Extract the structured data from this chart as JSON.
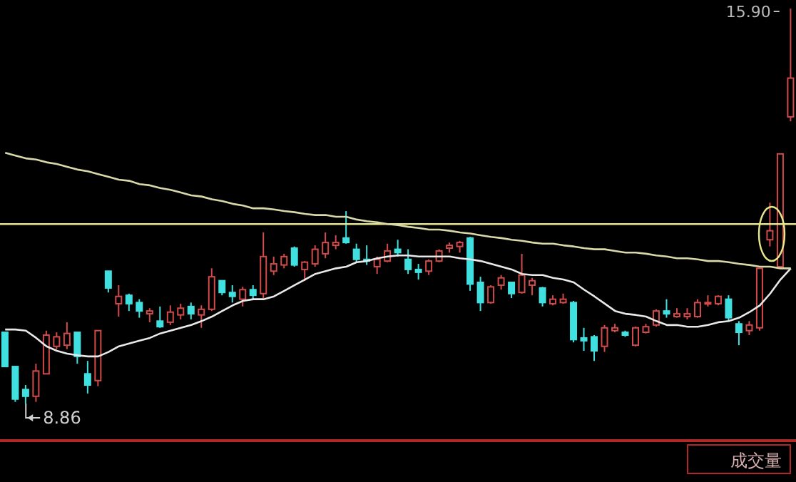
{
  "chart_data": {
    "type": "candlestick",
    "categories": [
      null,
      null,
      null,
      null,
      null,
      null,
      null,
      null,
      null,
      null,
      null,
      null,
      null,
      null,
      null,
      null,
      null,
      null,
      null,
      null,
      null,
      null,
      null,
      null,
      null,
      null,
      null,
      null,
      null,
      null,
      null,
      null,
      null,
      null,
      null,
      null,
      null,
      null,
      null,
      null,
      null,
      null,
      null,
      null,
      null,
      null,
      null,
      null,
      null,
      null,
      null,
      null,
      null,
      null,
      null,
      null,
      null,
      null,
      null,
      null,
      null,
      null,
      null,
      null,
      null,
      null,
      null,
      null,
      null,
      null,
      null,
      null,
      null,
      null,
      null,
      null,
      null
    ],
    "ohlc": [
      [
        10.13,
        10.13,
        9.52,
        9.52
      ],
      [
        9.52,
        9.52,
        8.89,
        8.94
      ],
      [
        9.11,
        9.19,
        8.86,
        8.99
      ],
      [
        8.99,
        9.57,
        8.89,
        9.44
      ],
      [
        9.39,
        10.16,
        9.39,
        10.08
      ],
      [
        9.88,
        10.13,
        9.83,
        10.05
      ],
      [
        9.9,
        10.31,
        9.83,
        10.11
      ],
      [
        10.13,
        10.13,
        9.57,
        9.7
      ],
      [
        9.39,
        9.62,
        9.04,
        9.19
      ],
      [
        9.27,
        10.16,
        9.17,
        10.16
      ],
      [
        11.22,
        11.22,
        10.84,
        10.92
      ],
      [
        10.64,
        10.97,
        10.41,
        10.77
      ],
      [
        10.79,
        10.82,
        10.51,
        10.64
      ],
      [
        10.66,
        10.72,
        10.39,
        10.51
      ],
      [
        10.46,
        10.56,
        10.31,
        10.51
      ],
      [
        10.33,
        10.59,
        10.21,
        10.23
      ],
      [
        10.31,
        10.61,
        10.26,
        10.49
      ],
      [
        10.44,
        10.64,
        10.36,
        10.56
      ],
      [
        10.59,
        10.66,
        10.36,
        10.46
      ],
      [
        10.44,
        10.61,
        10.21,
        10.54
      ],
      [
        10.54,
        11.27,
        10.51,
        11.12
      ],
      [
        11.05,
        11.05,
        10.79,
        10.84
      ],
      [
        10.84,
        10.97,
        10.66,
        10.77
      ],
      [
        10.72,
        10.94,
        10.59,
        10.89
      ],
      [
        10.89,
        10.97,
        10.72,
        10.79
      ],
      [
        10.82,
        11.91,
        10.74,
        11.48
      ],
      [
        11.22,
        11.48,
        11.15,
        11.35
      ],
      [
        11.33,
        11.53,
        11.27,
        11.48
      ],
      [
        11.63,
        11.66,
        11.3,
        11.33
      ],
      [
        11.25,
        11.4,
        11.05,
        11.38
      ],
      [
        11.35,
        11.68,
        11.3,
        11.61
      ],
      [
        11.53,
        11.91,
        11.45,
        11.73
      ],
      [
        11.68,
        11.86,
        11.61,
        11.73
      ],
      [
        11.81,
        12.29,
        11.71,
        11.73
      ],
      [
        11.61,
        11.71,
        11.38,
        11.43
      ],
      [
        11.43,
        11.68,
        11.33,
        11.4
      ],
      [
        11.3,
        11.48,
        11.17,
        11.43
      ],
      [
        11.4,
        11.71,
        11.38,
        11.58
      ],
      [
        11.61,
        11.78,
        11.48,
        11.55
      ],
      [
        11.43,
        11.61,
        11.17,
        11.25
      ],
      [
        11.25,
        11.35,
        11.07,
        11.2
      ],
      [
        11.22,
        11.43,
        11.15,
        11.4
      ],
      [
        11.4,
        11.61,
        11.38,
        11.58
      ],
      [
        11.63,
        11.73,
        11.55,
        11.68
      ],
      [
        11.66,
        11.76,
        11.55,
        11.73
      ],
      [
        11.81,
        11.83,
        10.87,
        10.99
      ],
      [
        11.02,
        11.12,
        10.51,
        10.66
      ],
      [
        10.66,
        10.97,
        10.64,
        10.94
      ],
      [
        10.97,
        11.15,
        10.89,
        11.1
      ],
      [
        11.02,
        11.02,
        10.74,
        10.82
      ],
      [
        10.84,
        11.53,
        10.82,
        11.15
      ],
      [
        10.97,
        11.1,
        10.79,
        11.05
      ],
      [
        10.92,
        10.94,
        10.59,
        10.66
      ],
      [
        10.64,
        10.79,
        10.61,
        10.72
      ],
      [
        10.66,
        10.82,
        10.64,
        10.72
      ],
      [
        10.66,
        10.69,
        9.95,
        10.0
      ],
      [
        10.03,
        10.21,
        9.8,
        9.98
      ],
      [
        10.05,
        10.08,
        9.62,
        9.8
      ],
      [
        9.88,
        10.26,
        9.78,
        10.21
      ],
      [
        10.16,
        10.28,
        10.13,
        10.21
      ],
      [
        10.13,
        10.16,
        10.05,
        10.08
      ],
      [
        9.9,
        10.23,
        9.88,
        10.21
      ],
      [
        10.13,
        10.28,
        10.11,
        10.23
      ],
      [
        10.26,
        10.54,
        10.23,
        10.51
      ],
      [
        10.51,
        10.72,
        10.39,
        10.46
      ],
      [
        10.41,
        10.56,
        10.39,
        10.46
      ],
      [
        10.41,
        10.56,
        10.36,
        10.46
      ],
      [
        10.41,
        10.72,
        10.39,
        10.66
      ],
      [
        10.64,
        10.79,
        10.59,
        10.66
      ],
      [
        10.64,
        10.79,
        10.61,
        10.77
      ],
      [
        10.72,
        10.79,
        10.33,
        10.39
      ],
      [
        10.28,
        10.33,
        9.9,
        10.13
      ],
      [
        10.16,
        10.33,
        10.08,
        10.26
      ],
      [
        10.21,
        11.27,
        10.16,
        11.27
      ],
      [
        11.78,
        12.44,
        11.66,
        11.94
      ],
      [
        11.3,
        13.31,
        11.3,
        13.31
      ],
      [
        13.97,
        15.9,
        13.89,
        14.66
      ]
    ],
    "colors": [
      "#40e0e0",
      "#40e0e0",
      "#40e0e0",
      "#d24a4a",
      "#d24a4a",
      "#d24a4a",
      "#d24a4a",
      "#40e0e0",
      "#40e0e0",
      "#d24a4a",
      "#40e0e0",
      "#d24a4a",
      "#40e0e0",
      "#40e0e0",
      "#d24a4a",
      "#40e0e0",
      "#d24a4a",
      "#d24a4a",
      "#40e0e0",
      "#d24a4a",
      "#d24a4a",
      "#40e0e0",
      "#40e0e0",
      "#d24a4a",
      "#40e0e0",
      "#d24a4a",
      "#d24a4a",
      "#d24a4a",
      "#40e0e0",
      "#d24a4a",
      "#d24a4a",
      "#d24a4a",
      "#d24a4a",
      "#40e0e0",
      "#40e0e0",
      "#40e0e0",
      "#d24a4a",
      "#d24a4a",
      "#40e0e0",
      "#40e0e0",
      "#40e0e0",
      "#d24a4a",
      "#d24a4a",
      "#d24a4a",
      "#d24a4a",
      "#40e0e0",
      "#40e0e0",
      "#d24a4a",
      "#d24a4a",
      "#40e0e0",
      "#d24a4a",
      "#d24a4a",
      "#40e0e0",
      "#d24a4a",
      "#d24a4a",
      "#40e0e0",
      "#40e0e0",
      "#40e0e0",
      "#d24a4a",
      "#d24a4a",
      "#40e0e0",
      "#d24a4a",
      "#d24a4a",
      "#d24a4a",
      "#40e0e0",
      "#d24a4a",
      "#d24a4a",
      "#d24a4a",
      "#d24a4a",
      "#d24a4a",
      "#40e0e0",
      "#40e0e0",
      "#d24a4a",
      "#d24a4a",
      "#d24a4a",
      "#d24a4a",
      "#d24a4a"
    ],
    "series": [
      {
        "type": "line",
        "color": "#e8e8e8",
        "values": [
          10.18,
          10.18,
          10.16,
          10.03,
          9.88,
          9.8,
          9.75,
          9.72,
          9.7,
          9.7,
          9.78,
          9.88,
          9.93,
          9.98,
          10.03,
          10.11,
          10.16,
          10.21,
          10.26,
          10.33,
          10.41,
          10.51,
          10.61,
          10.69,
          10.72,
          10.72,
          10.77,
          10.87,
          10.97,
          11.07,
          11.17,
          11.22,
          11.27,
          11.3,
          11.38,
          11.4,
          11.45,
          11.48,
          11.5,
          11.5,
          11.48,
          11.48,
          11.48,
          11.48,
          11.45,
          11.43,
          11.4,
          11.35,
          11.3,
          11.25,
          11.17,
          11.15,
          11.15,
          11.1,
          11.07,
          11.02,
          10.89,
          10.77,
          10.64,
          10.51,
          10.46,
          10.44,
          10.41,
          10.33,
          10.26,
          10.26,
          10.23,
          10.23,
          10.26,
          10.31,
          10.33,
          10.39,
          10.49,
          10.61,
          10.82,
          11.07,
          11.27
        ]
      },
      {
        "type": "line",
        "color": "#d8d8a8",
        "values": [
          13.33,
          13.28,
          13.23,
          13.21,
          13.16,
          13.13,
          13.08,
          13.03,
          13.0,
          12.95,
          12.9,
          12.85,
          12.83,
          12.77,
          12.75,
          12.7,
          12.67,
          12.62,
          12.57,
          12.55,
          12.5,
          12.47,
          12.42,
          12.39,
          12.34,
          12.34,
          12.32,
          12.29,
          12.27,
          12.24,
          12.22,
          12.22,
          12.19,
          12.19,
          12.14,
          12.11,
          12.09,
          12.06,
          12.04,
          12.01,
          11.99,
          11.96,
          11.96,
          11.94,
          11.91,
          11.89,
          11.86,
          11.83,
          11.81,
          11.78,
          11.76,
          11.73,
          11.71,
          11.71,
          11.68,
          11.66,
          11.63,
          11.61,
          11.61,
          11.58,
          11.55,
          11.55,
          11.53,
          11.5,
          11.48,
          11.45,
          11.45,
          11.43,
          11.4,
          11.4,
          11.38,
          11.35,
          11.33,
          11.3,
          11.3,
          11.27,
          11.27
        ]
      }
    ],
    "ref_lines": [
      {
        "axis": "y",
        "value": 12.06,
        "color": "#e6e68a"
      }
    ],
    "annotations": [
      "15.90",
      "8.86",
      "成交量"
    ]
  }
}
